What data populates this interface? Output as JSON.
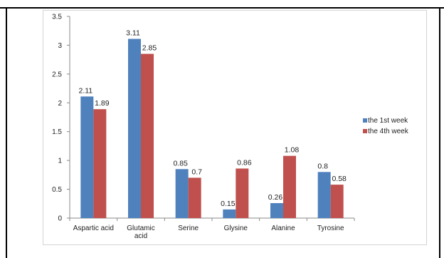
{
  "chart_data": {
    "type": "bar",
    "categories": [
      [
        "Aspartic acid"
      ],
      [
        "Glutamic",
        "acid"
      ],
      [
        "Serine"
      ],
      [
        "Glysine"
      ],
      [
        "Alanine"
      ],
      [
        "Tyrosine"
      ]
    ],
    "series": [
      {
        "name": "the 1st week",
        "values": [
          2.11,
          3.11,
          0.85,
          0.15,
          0.26,
          0.8
        ],
        "labels": [
          "2.11",
          "3.11",
          "0.85",
          "0.15",
          "0.26",
          "0.8"
        ],
        "color": "#4f81bd"
      },
      {
        "name": "the 4th week",
        "values": [
          1.89,
          2.85,
          0.7,
          0.86,
          1.08,
          0.58
        ],
        "labels": [
          "1.89",
          "2.85",
          "0.7",
          "0.86",
          "1.08",
          "0.58"
        ],
        "color": "#c0504d"
      }
    ],
    "yticks": [
      "0",
      "0.5",
      "1",
      "1.5",
      "2",
      "2.5",
      "3",
      "3.5"
    ],
    "ylim": [
      0,
      3.5
    ],
    "grid": false,
    "legend_position": "right"
  }
}
